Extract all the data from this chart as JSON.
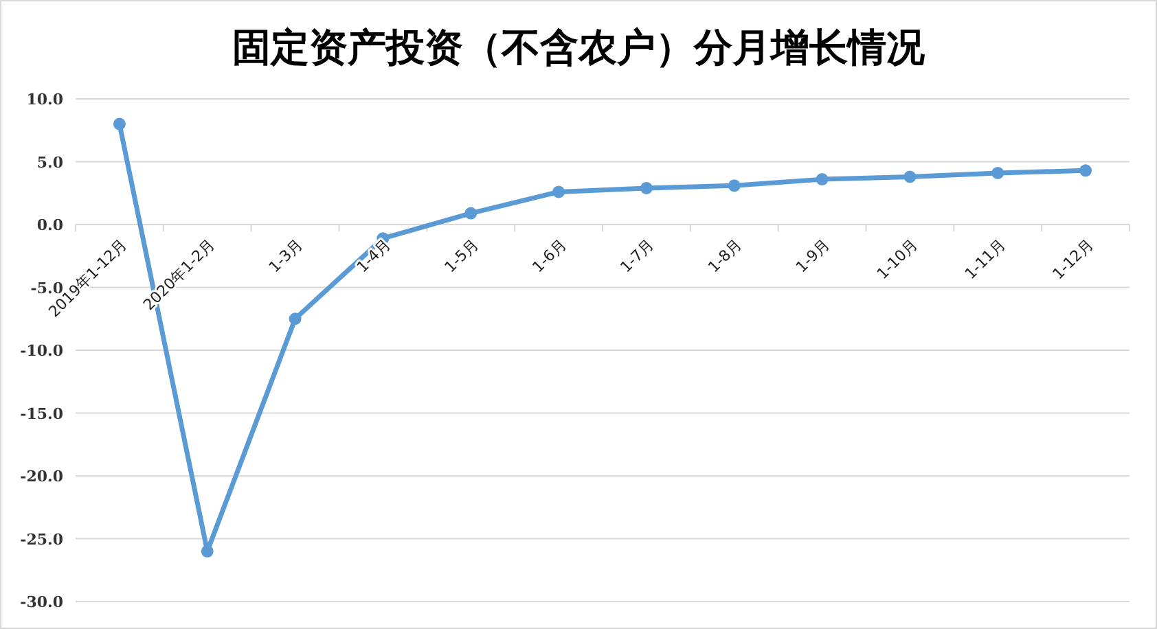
{
  "chart_data": {
    "type": "line",
    "title": "固定资产投资（不含农户）分月增长情况",
    "categories": [
      "2019年1-12月",
      "2020年1-2月",
      "1-3月",
      "1-4月",
      "1-5月",
      "1-6月",
      "1-7月",
      "1-8月",
      "1-9月",
      "1-10月",
      "1-11月",
      "1-12月"
    ],
    "series": [
      {
        "color": "#5b9bd5",
        "values": [
          8.0,
          -26.0,
          -7.5,
          -1.1,
          0.9,
          2.6,
          2.9,
          3.1,
          3.6,
          3.8,
          4.1,
          4.3
        ]
      }
    ],
    "ylim": [
      -30,
      10
    ],
    "yticks": [
      {
        "value": -30,
        "label": "-30.0"
      },
      {
        "value": -25,
        "label": "-25.0"
      },
      {
        "value": -20,
        "label": "-20.0"
      },
      {
        "value": -15,
        "label": "-15.0"
      },
      {
        "value": -10,
        "label": "-10.0"
      },
      {
        "value": -5,
        "label": "-5.0"
      },
      {
        "value": 0,
        "label": "0.0"
      },
      {
        "value": 5,
        "label": "5.0"
      },
      {
        "value": 10,
        "label": "10.0"
      }
    ],
    "grid": "y",
    "marker": "circle",
    "line_style": "solid"
  }
}
